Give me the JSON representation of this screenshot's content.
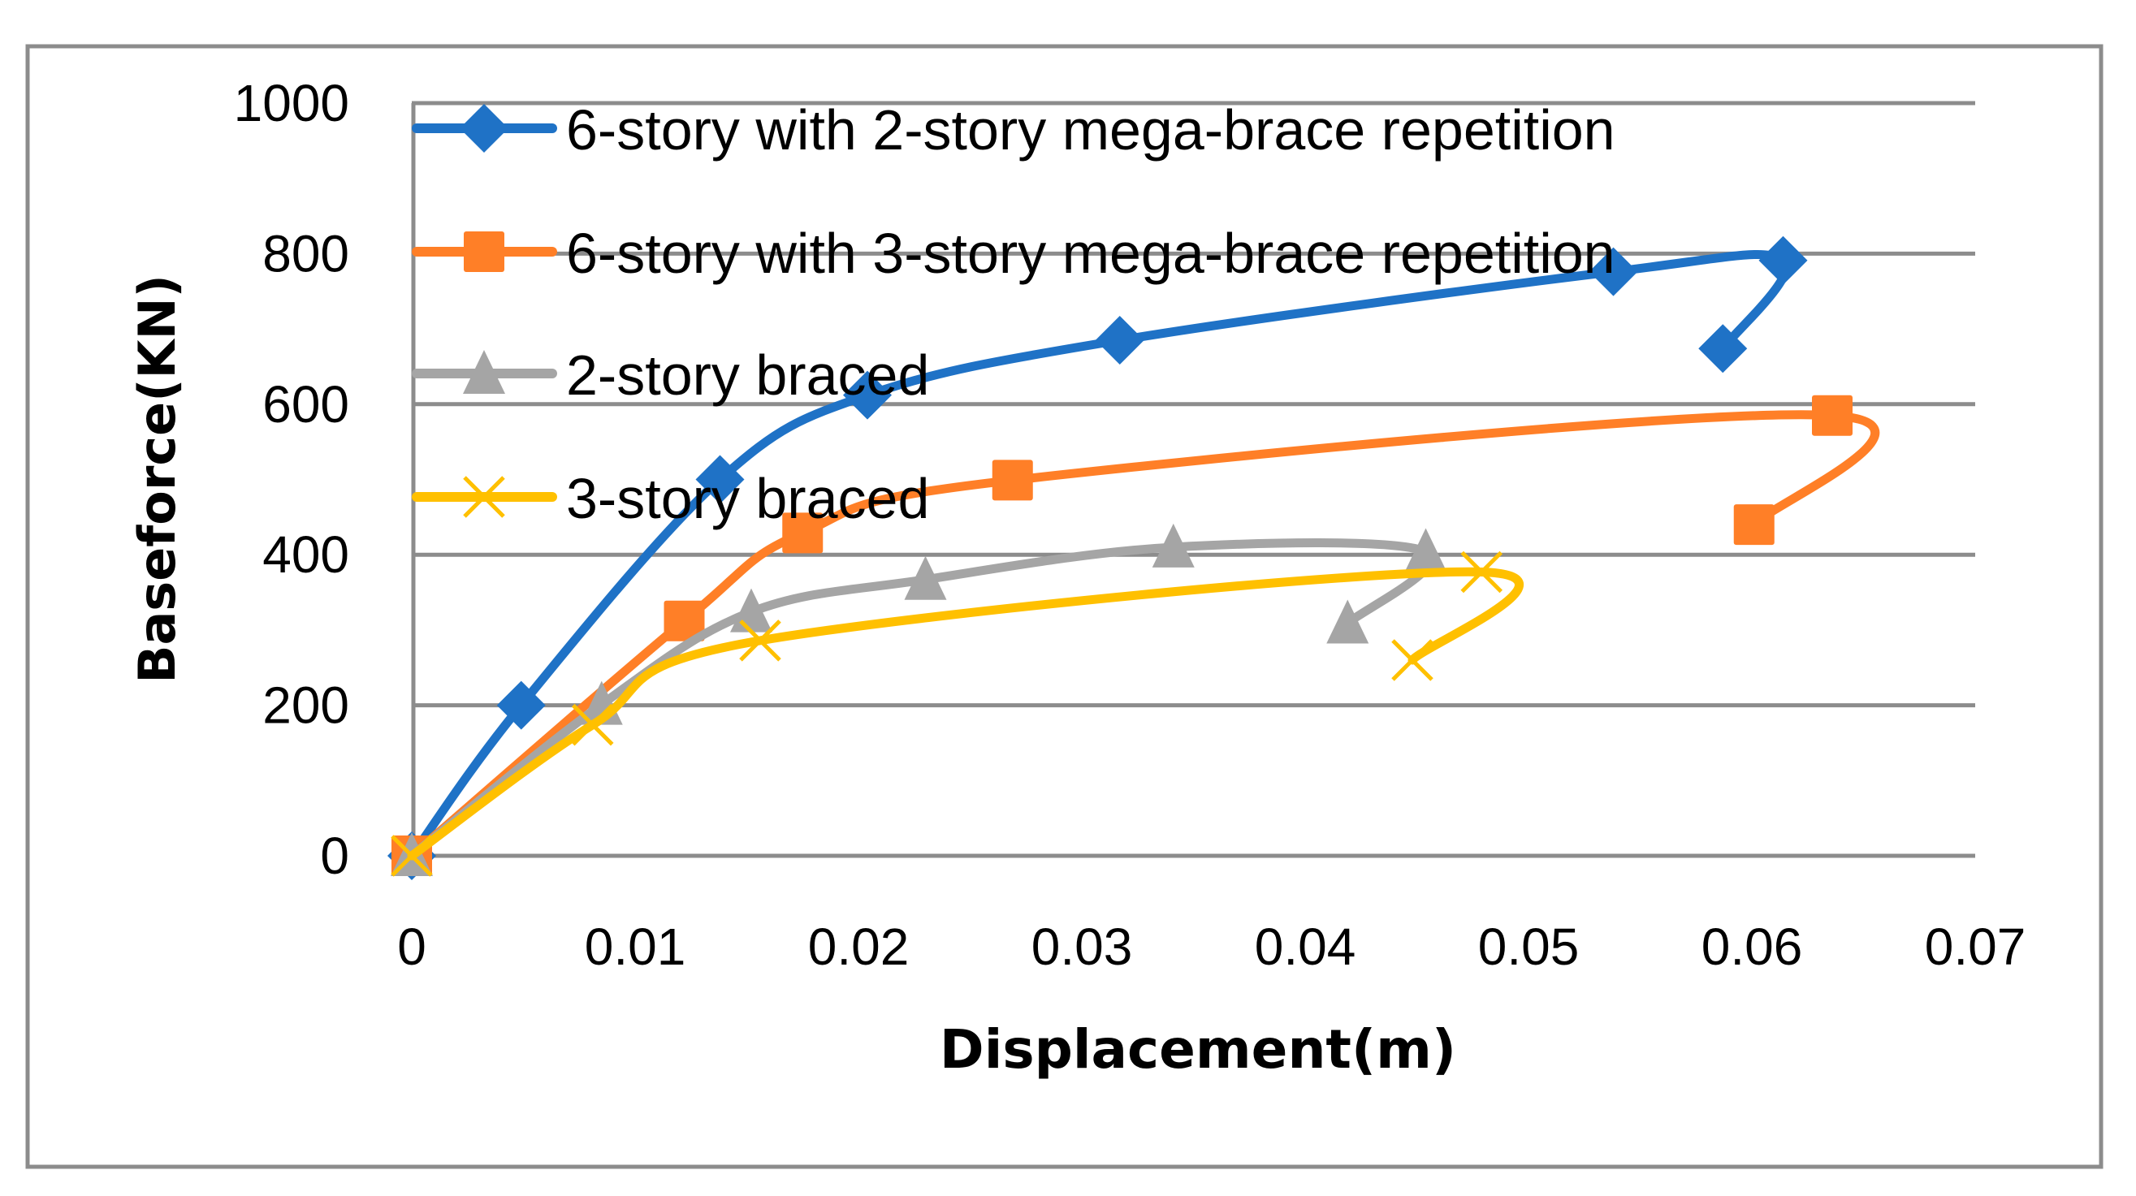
{
  "chart_data": {
    "type": "line",
    "title": "",
    "xlabel": "Displacement(m)",
    "ylabel": "Baseforce(KN)",
    "xlim": [
      0,
      0.07
    ],
    "ylim": [
      0,
      1000
    ],
    "x_ticks": [
      "0",
      "0.01",
      "0.02",
      "0.03",
      "0.04",
      "0.05",
      "0.06",
      "0.07"
    ],
    "y_ticks": [
      "0",
      "200",
      "400",
      "600",
      "800",
      "1000"
    ],
    "grid": {
      "horizontal": true,
      "vertical": false
    },
    "legend_position": "upper-left (inside plot)",
    "smoothed": true,
    "series": [
      {
        "name": "6-story with 2-story mega-brace repetition",
        "color": "#1F72C6",
        "marker": "diamond",
        "x": [
          0,
          0.0049,
          0.0138,
          0.0204,
          0.0317,
          0.0538,
          0.0614,
          0.0587
        ],
        "y": [
          0,
          200,
          500,
          612,
          685,
          776,
          791,
          674
        ]
      },
      {
        "name": "6-story with 3-story mega-brace repetition",
        "color": "#FF7F27",
        "marker": "square",
        "x": [
          0,
          0.0122,
          0.0175,
          0.0269,
          0.0636,
          0.0601
        ],
        "y": [
          0,
          312,
          429,
          499,
          585,
          440
        ]
      },
      {
        "name": "2-story braced",
        "color": "#A5A5A5",
        "marker": "triangle",
        "x": [
          0,
          0.0085,
          0.0152,
          0.023,
          0.0341,
          0.0454,
          0.0419
        ],
        "y": [
          0,
          201,
          324,
          367,
          410,
          404,
          309
        ]
      },
      {
        "name": "3-story braced",
        "color": "#FFC000",
        "marker": "x",
        "x": [
          0,
          0.0081,
          0.0156,
          0.0479,
          0.0448
        ],
        "y": [
          0,
          174,
          286,
          377,
          260
        ]
      }
    ]
  },
  "style": {
    "gridline_color": "#8C8C8C",
    "frame_color": "#8C8C8C",
    "background": "#FFFFFF"
  }
}
